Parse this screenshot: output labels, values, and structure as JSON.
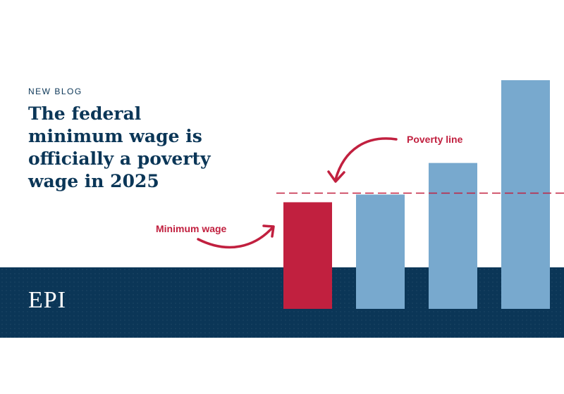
{
  "blog": {
    "eyebrow": "NEW BLOG",
    "headline": "The federal minimum wage is officially a poverty wage in 2025"
  },
  "logo": {
    "text": "EPI"
  },
  "colors": {
    "navy": "#0b3657",
    "red": "#c1203f",
    "blue": "#78a9ce"
  },
  "chart_data": {
    "type": "bar",
    "categories": [
      "",
      "",
      "",
      ""
    ],
    "values": [
      152,
      163,
      208,
      326
    ],
    "bar_colors": [
      "#c1203f",
      "#78a9ce",
      "#78a9ce",
      "#78a9ce"
    ],
    "reference_line": {
      "value": 165
    },
    "annotations": [
      {
        "text": "Poverty line"
      },
      {
        "text": "Minimum wage"
      }
    ],
    "title": "",
    "xlabel": "",
    "ylabel": "",
    "ylim": [
      0,
      330
    ],
    "grid": false
  }
}
